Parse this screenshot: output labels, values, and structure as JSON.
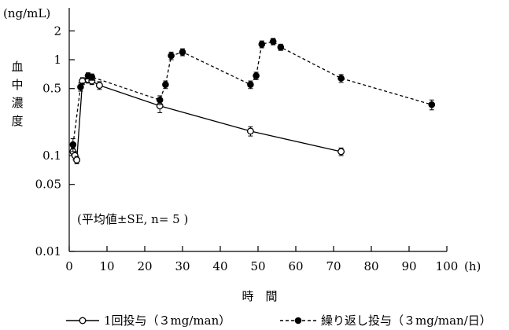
{
  "chart_data": {
    "type": "line",
    "y_unit": "(ng/mL)",
    "ylabel": "血中濃度",
    "xlabel": "時　間",
    "x_unit": "(h)",
    "y_scale": "log",
    "ylim": [
      0.01,
      3
    ],
    "xlim": [
      0,
      100
    ],
    "xticks": [
      0,
      10,
      20,
      30,
      40,
      50,
      60,
      70,
      80,
      90,
      100
    ],
    "yticks": [
      {
        "value": 0.01,
        "label": "0.01"
      },
      {
        "value": 0.05,
        "label": "0.05"
      },
      {
        "value": 0.1,
        "label": "0.1"
      },
      {
        "value": 0.5,
        "label": "0.5"
      },
      {
        "value": 1,
        "label": "1"
      },
      {
        "value": 2,
        "label": "2"
      }
    ],
    "grid": false,
    "annotation": "(平均値±SE, n= 5 )",
    "legend_position": "bottom",
    "series": [
      {
        "name": "1回投与（３mg/man）",
        "style": "solid",
        "marker": "open-circle",
        "color": "#000000",
        "points": [
          {
            "x": 1,
            "y": 0.11,
            "err": 0.01
          },
          {
            "x": 1.5,
            "y": 0.1,
            "err": 0.01
          },
          {
            "x": 2,
            "y": 0.09,
            "err": 0.008
          },
          {
            "x": 3.5,
            "y": 0.6,
            "err": 0.05
          },
          {
            "x": 5,
            "y": 0.62,
            "err": 0.05
          },
          {
            "x": 6,
            "y": 0.6,
            "err": 0.05
          },
          {
            "x": 8,
            "y": 0.54,
            "err": 0.05
          },
          {
            "x": 24,
            "y": 0.33,
            "err": 0.05
          },
          {
            "x": 48,
            "y": 0.18,
            "err": 0.02
          },
          {
            "x": 72,
            "y": 0.11,
            "err": 0.01
          }
        ]
      },
      {
        "name": "繰り返し投与（３mg/man/日）",
        "style": "dashed",
        "marker": "filled-circle",
        "color": "#000000",
        "points": [
          {
            "x": 1,
            "y": 0.13,
            "err": 0.02
          },
          {
            "x": 3,
            "y": 0.52,
            "err": 0.05
          },
          {
            "x": 5,
            "y": 0.68,
            "err": 0.05
          },
          {
            "x": 6,
            "y": 0.66,
            "err": 0.05
          },
          {
            "x": 24,
            "y": 0.38,
            "err": 0.04
          },
          {
            "x": 25.5,
            "y": 0.55,
            "err": 0.05
          },
          {
            "x": 27,
            "y": 1.1,
            "err": 0.1
          },
          {
            "x": 30,
            "y": 1.2,
            "err": 0.1
          },
          {
            "x": 48,
            "y": 0.55,
            "err": 0.05
          },
          {
            "x": 49.5,
            "y": 0.68,
            "err": 0.06
          },
          {
            "x": 51,
            "y": 1.45,
            "err": 0.12
          },
          {
            "x": 54,
            "y": 1.55,
            "err": 0.12
          },
          {
            "x": 56,
            "y": 1.35,
            "err": 0.1
          },
          {
            "x": 72,
            "y": 0.64,
            "err": 0.06
          },
          {
            "x": 96,
            "y": 0.34,
            "err": 0.04
          }
        ]
      }
    ]
  }
}
